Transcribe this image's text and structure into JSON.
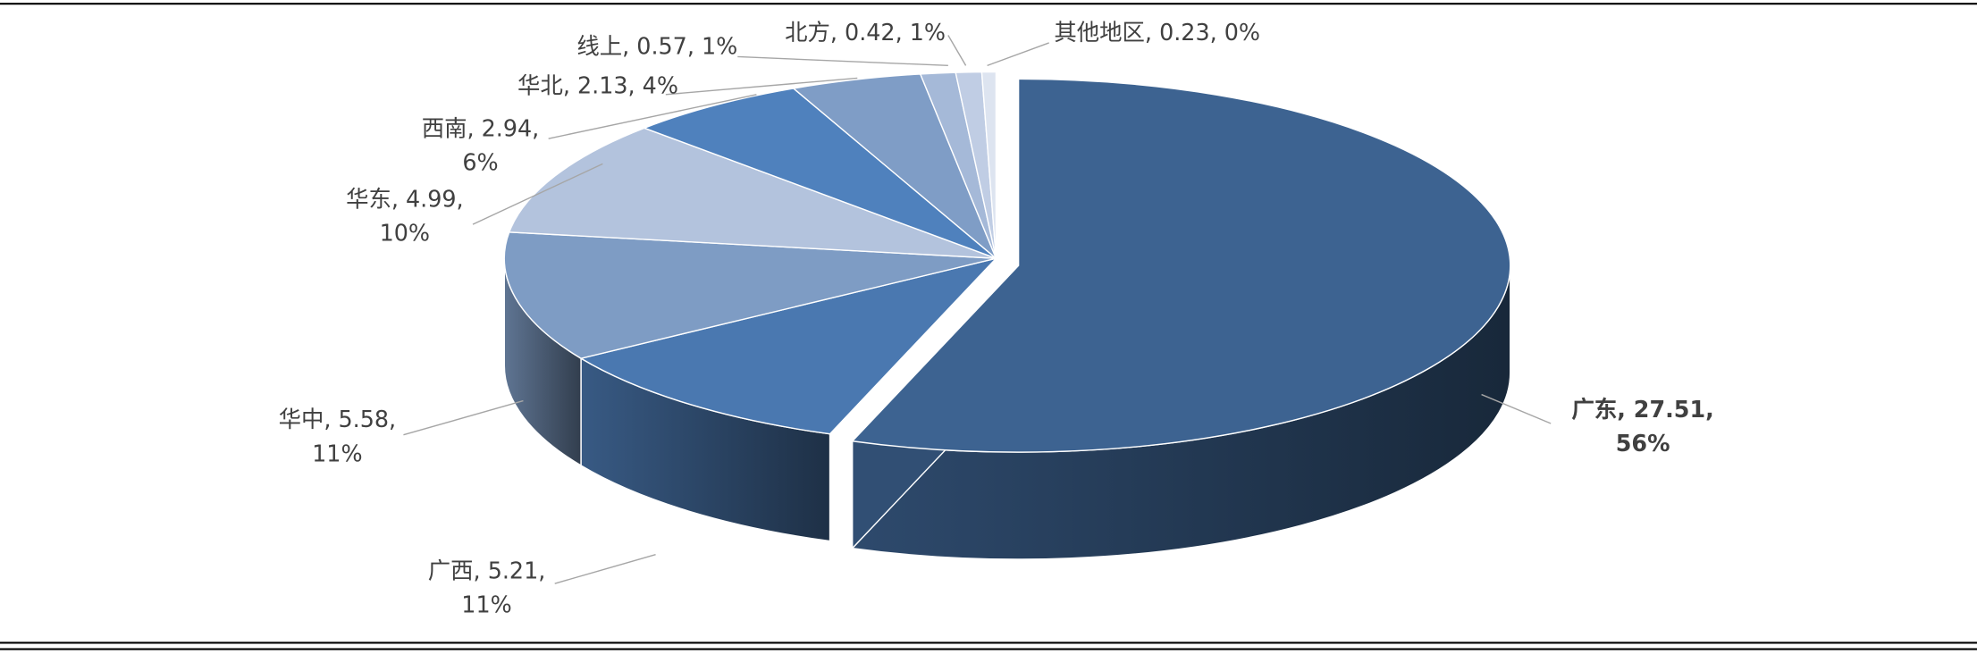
{
  "chart_data": {
    "type": "pie",
    "values": [
      27.51,
      5.21,
      5.58,
      4.99,
      2.94,
      2.13,
      0.57,
      0.42,
      0.23
    ],
    "value_labels": [
      "广东, 27.51, 56%",
      "广西, 5.21, 11%",
      "华中, 5.58, 11%",
      "华东, 4.99, 10%",
      "西南, 2.94, 6%",
      "华北, 2.13, 4%",
      "线上, 0.57, 1%",
      "北方, 0.42, 1%",
      "其他地区, 0.23, 0%"
    ],
    "colors": [
      "#3d6391",
      "#4a78b0",
      "#7e9cc4",
      "#b3c3dd",
      "#4f81bd",
      "#7f9dc6",
      "#a5b9d8",
      "#c0cde4",
      "#dde4f0"
    ],
    "exploded": [
      0
    ]
  }
}
